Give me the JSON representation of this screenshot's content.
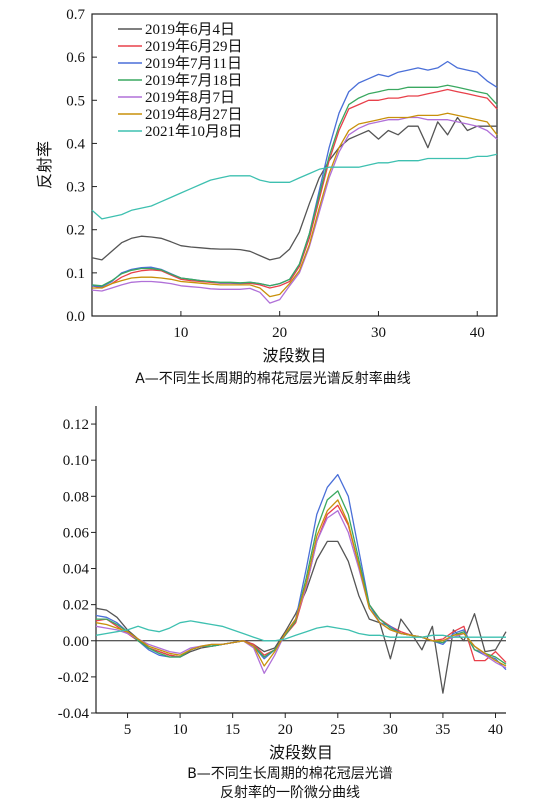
{
  "chart_data": [
    {
      "id": "A",
      "type": "line",
      "caption": "A—不同生长周期的棉花冠层光谱反射率曲线",
      "xlabel": "波段数目",
      "ylabel": "反射率",
      "xlim": [
        1,
        42
      ],
      "ylim": [
        0.0,
        0.7
      ],
      "xticks": [
        10,
        20,
        30,
        40
      ],
      "yticks": [
        0.0,
        0.1,
        0.2,
        0.3,
        0.4,
        0.5,
        0.6,
        0.7
      ],
      "yticklabels": [
        "0.0",
        "0.1",
        "0.2",
        "0.3",
        "0.4",
        "0.5",
        "0.6",
        "0.7"
      ],
      "legend_position": "top-left",
      "x": [
        1,
        2,
        3,
        4,
        5,
        6,
        7,
        8,
        9,
        10,
        11,
        12,
        13,
        14,
        15,
        16,
        17,
        18,
        19,
        20,
        21,
        22,
        23,
        24,
        25,
        26,
        27,
        28,
        29,
        30,
        31,
        32,
        33,
        34,
        35,
        36,
        37,
        38,
        39,
        40,
        41,
        42
      ],
      "series": [
        {
          "name": "2019年6月4日",
          "color": "#555555",
          "values": [
            0.135,
            0.13,
            0.15,
            0.17,
            0.18,
            0.185,
            0.183,
            0.18,
            0.172,
            0.163,
            0.16,
            0.158,
            0.156,
            0.155,
            0.155,
            0.154,
            0.15,
            0.14,
            0.13,
            0.135,
            0.155,
            0.195,
            0.26,
            0.32,
            0.36,
            0.39,
            0.41,
            0.42,
            0.43,
            0.41,
            0.43,
            0.42,
            0.44,
            0.44,
            0.39,
            0.45,
            0.42,
            0.46,
            0.43,
            0.44,
            0.44,
            0.44
          ]
        },
        {
          "name": "2019年6月29日",
          "color": "#e8404a",
          "values": [
            0.07,
            0.065,
            0.075,
            0.09,
            0.1,
            0.105,
            0.107,
            0.105,
            0.095,
            0.085,
            0.082,
            0.08,
            0.078,
            0.076,
            0.076,
            0.075,
            0.076,
            0.072,
            0.065,
            0.07,
            0.08,
            0.115,
            0.18,
            0.27,
            0.36,
            0.43,
            0.48,
            0.49,
            0.5,
            0.5,
            0.505,
            0.505,
            0.51,
            0.51,
            0.515,
            0.52,
            0.525,
            0.52,
            0.515,
            0.51,
            0.505,
            0.48
          ]
        },
        {
          "name": "2019年7月11日",
          "color": "#4a6fd8",
          "values": [
            0.07,
            0.068,
            0.08,
            0.1,
            0.108,
            0.112,
            0.113,
            0.108,
            0.098,
            0.088,
            0.085,
            0.082,
            0.08,
            0.077,
            0.077,
            0.076,
            0.078,
            0.075,
            0.07,
            0.075,
            0.085,
            0.12,
            0.19,
            0.29,
            0.39,
            0.47,
            0.52,
            0.54,
            0.55,
            0.56,
            0.555,
            0.565,
            0.57,
            0.575,
            0.57,
            0.575,
            0.59,
            0.575,
            0.57,
            0.565,
            0.545,
            0.53
          ]
        },
        {
          "name": "2019年7月18日",
          "color": "#3aa860",
          "values": [
            0.072,
            0.07,
            0.082,
            0.098,
            0.106,
            0.11,
            0.11,
            0.107,
            0.097,
            0.088,
            0.085,
            0.082,
            0.08,
            0.078,
            0.078,
            0.077,
            0.078,
            0.075,
            0.07,
            0.075,
            0.085,
            0.12,
            0.19,
            0.28,
            0.37,
            0.44,
            0.49,
            0.505,
            0.515,
            0.52,
            0.525,
            0.525,
            0.53,
            0.53,
            0.53,
            0.53,
            0.535,
            0.53,
            0.525,
            0.52,
            0.515,
            0.49
          ]
        },
        {
          "name": "2019年8月7日",
          "color": "#b070d8",
          "values": [
            0.06,
            0.058,
            0.065,
            0.072,
            0.078,
            0.08,
            0.08,
            0.078,
            0.075,
            0.07,
            0.068,
            0.066,
            0.063,
            0.062,
            0.062,
            0.062,
            0.064,
            0.055,
            0.03,
            0.038,
            0.07,
            0.1,
            0.16,
            0.24,
            0.32,
            0.38,
            0.42,
            0.435,
            0.445,
            0.45,
            0.455,
            0.455,
            0.46,
            0.46,
            0.455,
            0.455,
            0.455,
            0.45,
            0.445,
            0.44,
            0.43,
            0.41
          ]
        },
        {
          "name": "2019年8月27日",
          "color": "#c8900a",
          "values": [
            0.065,
            0.065,
            0.075,
            0.082,
            0.088,
            0.09,
            0.09,
            0.088,
            0.085,
            0.08,
            0.078,
            0.076,
            0.074,
            0.072,
            0.072,
            0.072,
            0.072,
            0.065,
            0.045,
            0.05,
            0.075,
            0.105,
            0.165,
            0.25,
            0.33,
            0.39,
            0.43,
            0.445,
            0.45,
            0.455,
            0.46,
            0.46,
            0.46,
            0.465,
            0.465,
            0.465,
            0.47,
            0.465,
            0.46,
            0.455,
            0.45,
            0.42
          ]
        },
        {
          "name": "2021年10月8日",
          "color": "#3ec0b0",
          "values": [
            0.245,
            0.225,
            0.23,
            0.235,
            0.245,
            0.25,
            0.255,
            0.265,
            0.275,
            0.285,
            0.295,
            0.305,
            0.315,
            0.32,
            0.325,
            0.325,
            0.325,
            0.315,
            0.31,
            0.31,
            0.31,
            0.32,
            0.33,
            0.34,
            0.345,
            0.345,
            0.345,
            0.345,
            0.35,
            0.355,
            0.355,
            0.36,
            0.36,
            0.36,
            0.365,
            0.365,
            0.365,
            0.365,
            0.365,
            0.37,
            0.37,
            0.375
          ]
        }
      ]
    },
    {
      "id": "B",
      "type": "line",
      "caption_lines": [
        "B—不同生长周期的棉花冠层光谱",
        "反射率的一阶微分曲线"
      ],
      "xlabel": "波段数目",
      "ylabel": "",
      "xlim": [
        2,
        41
      ],
      "ylim": [
        -0.04,
        0.13
      ],
      "xticks": [
        5,
        10,
        15,
        20,
        25,
        30,
        35,
        40
      ],
      "yticks": [
        -0.04,
        -0.02,
        0.0,
        0.02,
        0.04,
        0.06,
        0.08,
        0.1,
        0.12
      ],
      "yticklabels": [
        "-0.04",
        "-0.02",
        "0.00",
        "0.02",
        "0.04",
        "0.06",
        "0.08",
        "0.10",
        "0.12"
      ],
      "x": [
        2,
        3,
        4,
        5,
        6,
        7,
        8,
        9,
        10,
        11,
        12,
        13,
        14,
        15,
        16,
        17,
        18,
        19,
        20,
        21,
        22,
        23,
        24,
        25,
        26,
        27,
        28,
        29,
        30,
        31,
        32,
        33,
        34,
        35,
        36,
        37,
        38,
        39,
        40,
        41
      ],
      "series": [
        {
          "name": "2019年6月4日",
          "color": "#555555",
          "values": [
            0.018,
            0.017,
            0.013,
            0.006,
            0.001,
            -0.004,
            -0.006,
            -0.008,
            -0.009,
            -0.006,
            -0.004,
            -0.003,
            -0.002,
            -0.001,
            0.0,
            -0.002,
            -0.006,
            -0.004,
            0.005,
            0.015,
            0.028,
            0.045,
            0.055,
            0.055,
            0.044,
            0.025,
            0.012,
            0.01,
            -0.01,
            0.012,
            0.004,
            -0.005,
            0.008,
            -0.029,
            0.006,
            0.0,
            0.015,
            -0.006,
            -0.005,
            0.005
          ]
        },
        {
          "name": "2019年6月29日",
          "color": "#e8404a",
          "values": [
            0.011,
            0.012,
            0.008,
            0.004,
            0.0,
            -0.004,
            -0.006,
            -0.008,
            -0.009,
            -0.005,
            -0.003,
            -0.003,
            -0.002,
            -0.001,
            0.0,
            -0.002,
            -0.008,
            -0.005,
            0.003,
            0.01,
            0.03,
            0.055,
            0.07,
            0.075,
            0.064,
            0.042,
            0.02,
            0.012,
            0.008,
            0.005,
            0.003,
            0.002,
            0.0,
            0.001,
            0.005,
            0.008,
            -0.011,
            -0.011,
            -0.006,
            -0.012
          ]
        },
        {
          "name": "2019年7月11日",
          "color": "#4a6fd8",
          "values": [
            0.014,
            0.013,
            0.01,
            0.005,
            0.0,
            -0.005,
            -0.008,
            -0.009,
            -0.009,
            -0.005,
            -0.003,
            -0.003,
            -0.002,
            -0.001,
            0.0,
            -0.003,
            -0.01,
            -0.005,
            0.003,
            0.012,
            0.04,
            0.07,
            0.085,
            0.092,
            0.08,
            0.05,
            0.02,
            0.01,
            0.008,
            0.004,
            0.003,
            0.002,
            0.0,
            -0.002,
            0.004,
            0.006,
            -0.005,
            -0.008,
            -0.01,
            -0.016
          ]
        },
        {
          "name": "2019年7月18日",
          "color": "#3aa860",
          "values": [
            0.012,
            0.012,
            0.009,
            0.005,
            0.0,
            -0.004,
            -0.007,
            -0.009,
            -0.009,
            -0.005,
            -0.003,
            -0.003,
            -0.002,
            -0.001,
            0.0,
            -0.003,
            -0.009,
            -0.005,
            0.003,
            0.011,
            0.035,
            0.062,
            0.078,
            0.083,
            0.07,
            0.045,
            0.02,
            0.012,
            0.007,
            0.004,
            0.003,
            0.002,
            0.0,
            -0.001,
            0.003,
            0.005,
            -0.005,
            -0.007,
            -0.009,
            -0.013
          ]
        },
        {
          "name": "2019年8月7日",
          "color": "#b070d8",
          "values": [
            0.008,
            0.007,
            0.006,
            0.004,
            0.001,
            -0.002,
            -0.004,
            -0.006,
            -0.007,
            -0.004,
            -0.003,
            -0.002,
            -0.002,
            -0.001,
            0.0,
            -0.004,
            -0.018,
            -0.008,
            0.004,
            0.012,
            0.03,
            0.055,
            0.068,
            0.072,
            0.06,
            0.04,
            0.018,
            0.01,
            0.006,
            0.004,
            0.003,
            0.002,
            0.0,
            0.0,
            0.002,
            0.004,
            -0.003,
            -0.008,
            -0.012,
            -0.015
          ]
        },
        {
          "name": "2019年8月27日",
          "color": "#c8900a",
          "values": [
            0.01,
            0.009,
            0.007,
            0.005,
            0.001,
            -0.003,
            -0.005,
            -0.007,
            -0.008,
            -0.005,
            -0.003,
            -0.002,
            -0.002,
            -0.001,
            0.0,
            -0.003,
            -0.014,
            -0.006,
            0.004,
            0.012,
            0.032,
            0.058,
            0.072,
            0.078,
            0.065,
            0.042,
            0.018,
            0.01,
            0.006,
            0.004,
            0.003,
            0.002,
            0.0,
            0.0,
            0.003,
            0.004,
            -0.003,
            -0.007,
            -0.011,
            -0.014
          ]
        },
        {
          "name": "2021年10月8日",
          "color": "#3ec0b0",
          "values": [
            0.003,
            0.004,
            0.005,
            0.006,
            0.008,
            0.006,
            0.005,
            0.007,
            0.01,
            0.011,
            0.01,
            0.009,
            0.008,
            0.006,
            0.004,
            0.002,
            0.0,
            0.0,
            0.001,
            0.003,
            0.005,
            0.007,
            0.008,
            0.007,
            0.006,
            0.004,
            0.003,
            0.003,
            0.002,
            0.002,
            0.002,
            0.002,
            0.003,
            0.003,
            0.002,
            0.002,
            0.002,
            0.002,
            0.002,
            0.002
          ]
        }
      ]
    }
  ]
}
